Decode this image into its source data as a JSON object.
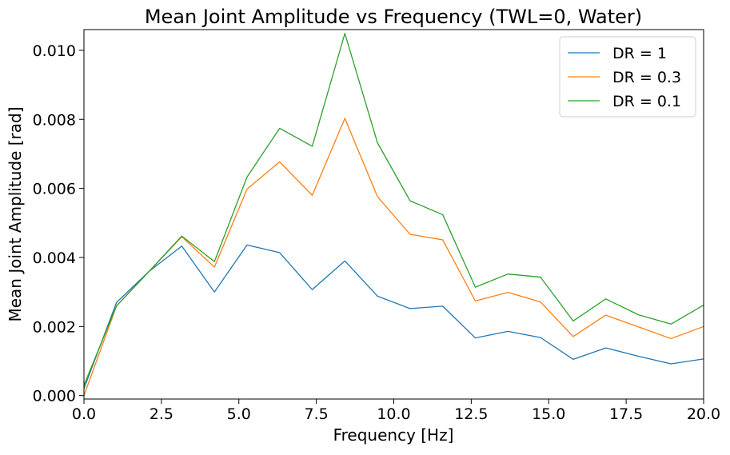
{
  "chart_data": {
    "type": "line",
    "title": "Mean Joint Amplitude vs Frequency (TWL=0, Water)",
    "xlabel": "Frequency [Hz]",
    "ylabel": "Mean Joint Amplitude [rad]",
    "xlim": [
      0,
      20
    ],
    "ylim": [
      -0.0001,
      0.0106
    ],
    "xticks": [
      0,
      2.5,
      5,
      7.5,
      10,
      12.5,
      15,
      17.5,
      20
    ],
    "xtick_labels": [
      "0.0",
      "2.5",
      "5.0",
      "7.5",
      "10.0",
      "12.5",
      "15.0",
      "17.5",
      "20.0"
    ],
    "yticks": [
      0,
      0.002,
      0.004,
      0.006,
      0.008,
      0.01
    ],
    "ytick_labels": [
      "0.000",
      "0.002",
      "0.004",
      "0.006",
      "0.008",
      "0.010"
    ],
    "grid": false,
    "legend_position": "top-right",
    "x": [
      0,
      1.053,
      2.105,
      3.158,
      4.211,
      5.263,
      6.316,
      7.368,
      8.421,
      9.474,
      10.526,
      11.579,
      12.632,
      13.684,
      14.737,
      15.789,
      16.842,
      17.895,
      18.947,
      20.0
    ],
    "series": [
      {
        "name": "DR = 1",
        "color": "#1f77b4",
        "values": [
          0.0002,
          0.0027,
          0.0036,
          0.00433,
          0.003,
          0.00436,
          0.00414,
          0.00307,
          0.0039,
          0.00288,
          0.00252,
          0.00259,
          0.00167,
          0.00186,
          0.00168,
          0.00105,
          0.00138,
          0.00114,
          0.00092,
          0.00106
        ]
      },
      {
        "name": "DR = 0.3",
        "color": "#ff7f0e",
        "values": [
          0.0,
          0.0026,
          0.0036,
          0.0046,
          0.00372,
          0.00598,
          0.00677,
          0.0058,
          0.00803,
          0.00576,
          0.00467,
          0.00451,
          0.00274,
          0.00299,
          0.00271,
          0.00171,
          0.00233,
          0.00199,
          0.00165,
          0.002
        ]
      },
      {
        "name": "DR = 0.1",
        "color": "#2ca02c",
        "values": [
          0.0003,
          0.0026,
          0.0036,
          0.00462,
          0.00388,
          0.00633,
          0.00774,
          0.00722,
          0.01049,
          0.00732,
          0.00564,
          0.00524,
          0.00314,
          0.00352,
          0.00343,
          0.00216,
          0.0028,
          0.00234,
          0.00207,
          0.00262
        ]
      }
    ]
  }
}
